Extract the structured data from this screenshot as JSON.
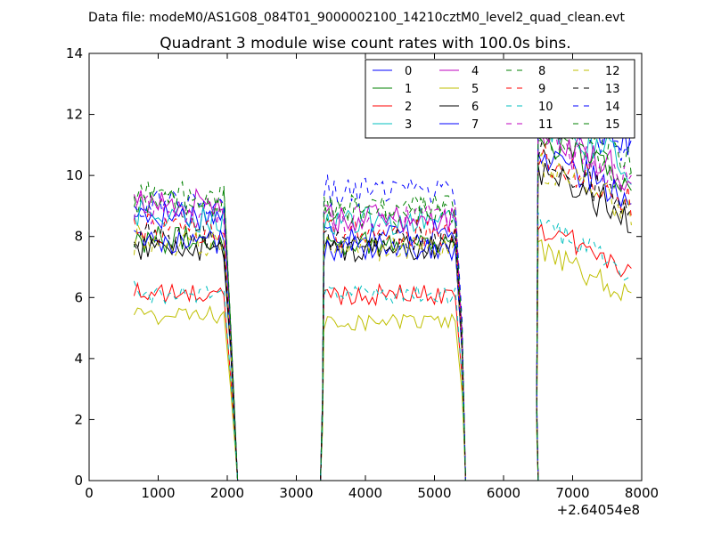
{
  "figure": {
    "suptitle": "Data file: modeM0/AS1G08_084T01_9000002100_14210cztM0_level2_quad_clean.evt",
    "title": "Quadrant 3 module wise count rates with 100.0s bins.",
    "x_offset_label": "+2.64054e8"
  },
  "chart_data": {
    "type": "line",
    "title": "Quadrant 3 module wise count rates with 100.0s bins.",
    "xlabel": "",
    "ylabel": "",
    "xlim": [
      0,
      8000
    ],
    "ylim": [
      0,
      14
    ],
    "x_offset": 264054000,
    "xticks": [
      0,
      1000,
      2000,
      3000,
      4000,
      5000,
      6000,
      7000,
      8000
    ],
    "yticks": [
      0,
      2,
      4,
      6,
      8,
      10,
      12,
      14
    ],
    "grid": false,
    "legend": {
      "placement": "top-right",
      "columns": 4
    },
    "segments": [
      {
        "x_start": 650,
        "x_end": 1950
      },
      {
        "x_start": 3400,
        "x_end": 5300
      },
      {
        "x_start": 6500,
        "x_end": 7850
      }
    ],
    "zero_gaps": [
      [
        2150,
        3350
      ],
      [
        5450,
        6500
      ]
    ],
    "series": [
      {
        "name": "0",
        "color": "#0000ff",
        "dash": "solid",
        "levels": [
          8.7,
          8.1,
          11.9
        ]
      },
      {
        "name": "1",
        "color": "#008000",
        "dash": "solid",
        "levels": [
          7.9,
          7.8,
          10.5
        ]
      },
      {
        "name": "2",
        "color": "#ff0000",
        "dash": "solid",
        "levels": [
          6.1,
          6.1,
          7.6
        ]
      },
      {
        "name": "3",
        "color": "#00bfbf",
        "dash": "solid",
        "levels": [
          8.6,
          8.5,
          11.1
        ]
      },
      {
        "name": "4",
        "color": "#bf00bf",
        "dash": "solid",
        "levels": [
          9.1,
          8.6,
          10.7
        ]
      },
      {
        "name": "5",
        "color": "#bfbf00",
        "dash": "solid",
        "levels": [
          5.4,
          5.2,
          6.8
        ]
      },
      {
        "name": "6",
        "color": "#000000",
        "dash": "solid",
        "levels": [
          7.6,
          7.6,
          9.4
        ]
      },
      {
        "name": "7",
        "color": "#0000ff",
        "dash": "solid",
        "levels": [
          7.8,
          7.6,
          10.0
        ]
      },
      {
        "name": "8",
        "color": "#008000",
        "dash": "dashed",
        "levels": [
          9.1,
          8.8,
          10.6
        ]
      },
      {
        "name": "9",
        "color": "#ff0000",
        "dash": "dashed",
        "levels": [
          8.2,
          8.1,
          9.9
        ]
      },
      {
        "name": "10",
        "color": "#00bfbf",
        "dash": "dashed",
        "levels": [
          6.1,
          6.1,
          7.6
        ]
      },
      {
        "name": "11",
        "color": "#bf00bf",
        "dash": "dashed",
        "levels": [
          8.8,
          8.6,
          10.5
        ]
      },
      {
        "name": "12",
        "color": "#bfbf00",
        "dash": "dashed",
        "levels": [
          7.8,
          7.6,
          9.6
        ]
      },
      {
        "name": "13",
        "color": "#000000",
        "dash": "dashed",
        "levels": [
          8.0,
          7.8,
          9.8
        ]
      },
      {
        "name": "14",
        "color": "#0000ff",
        "dash": "dashed",
        "levels": [
          9.1,
          9.5,
          11.6
        ]
      },
      {
        "name": "15",
        "color": "#008000",
        "dash": "dashed",
        "levels": [
          9.3,
          9.0,
          11.3
        ]
      }
    ]
  }
}
